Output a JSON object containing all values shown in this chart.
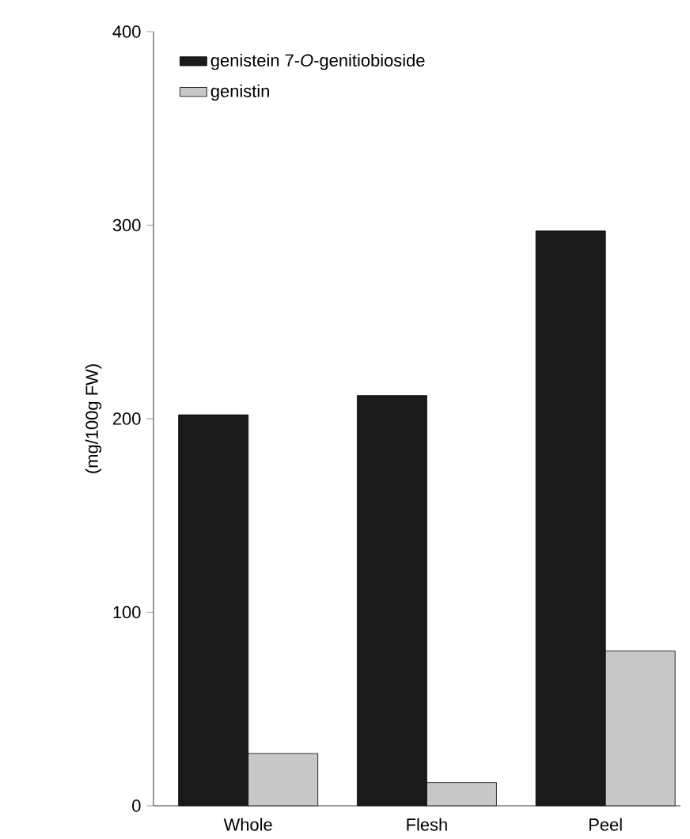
{
  "chart_data": {
    "type": "bar",
    "ylabel": "(mg/100g FW)",
    "categories": [
      "Whole",
      "Flesh",
      "Peel"
    ],
    "series": [
      {
        "name": "genistein 7-*O*-genitiobioside",
        "color": "#1a1a1a",
        "values": [
          202,
          212,
          297
        ]
      },
      {
        "name": "genistin",
        "color": "#c8c8c8",
        "values": [
          27,
          12,
          80
        ]
      }
    ],
    "ylim": [
      0,
      400
    ],
    "yticks": [
      0,
      100,
      200,
      300,
      400
    ],
    "legend": "top left"
  }
}
